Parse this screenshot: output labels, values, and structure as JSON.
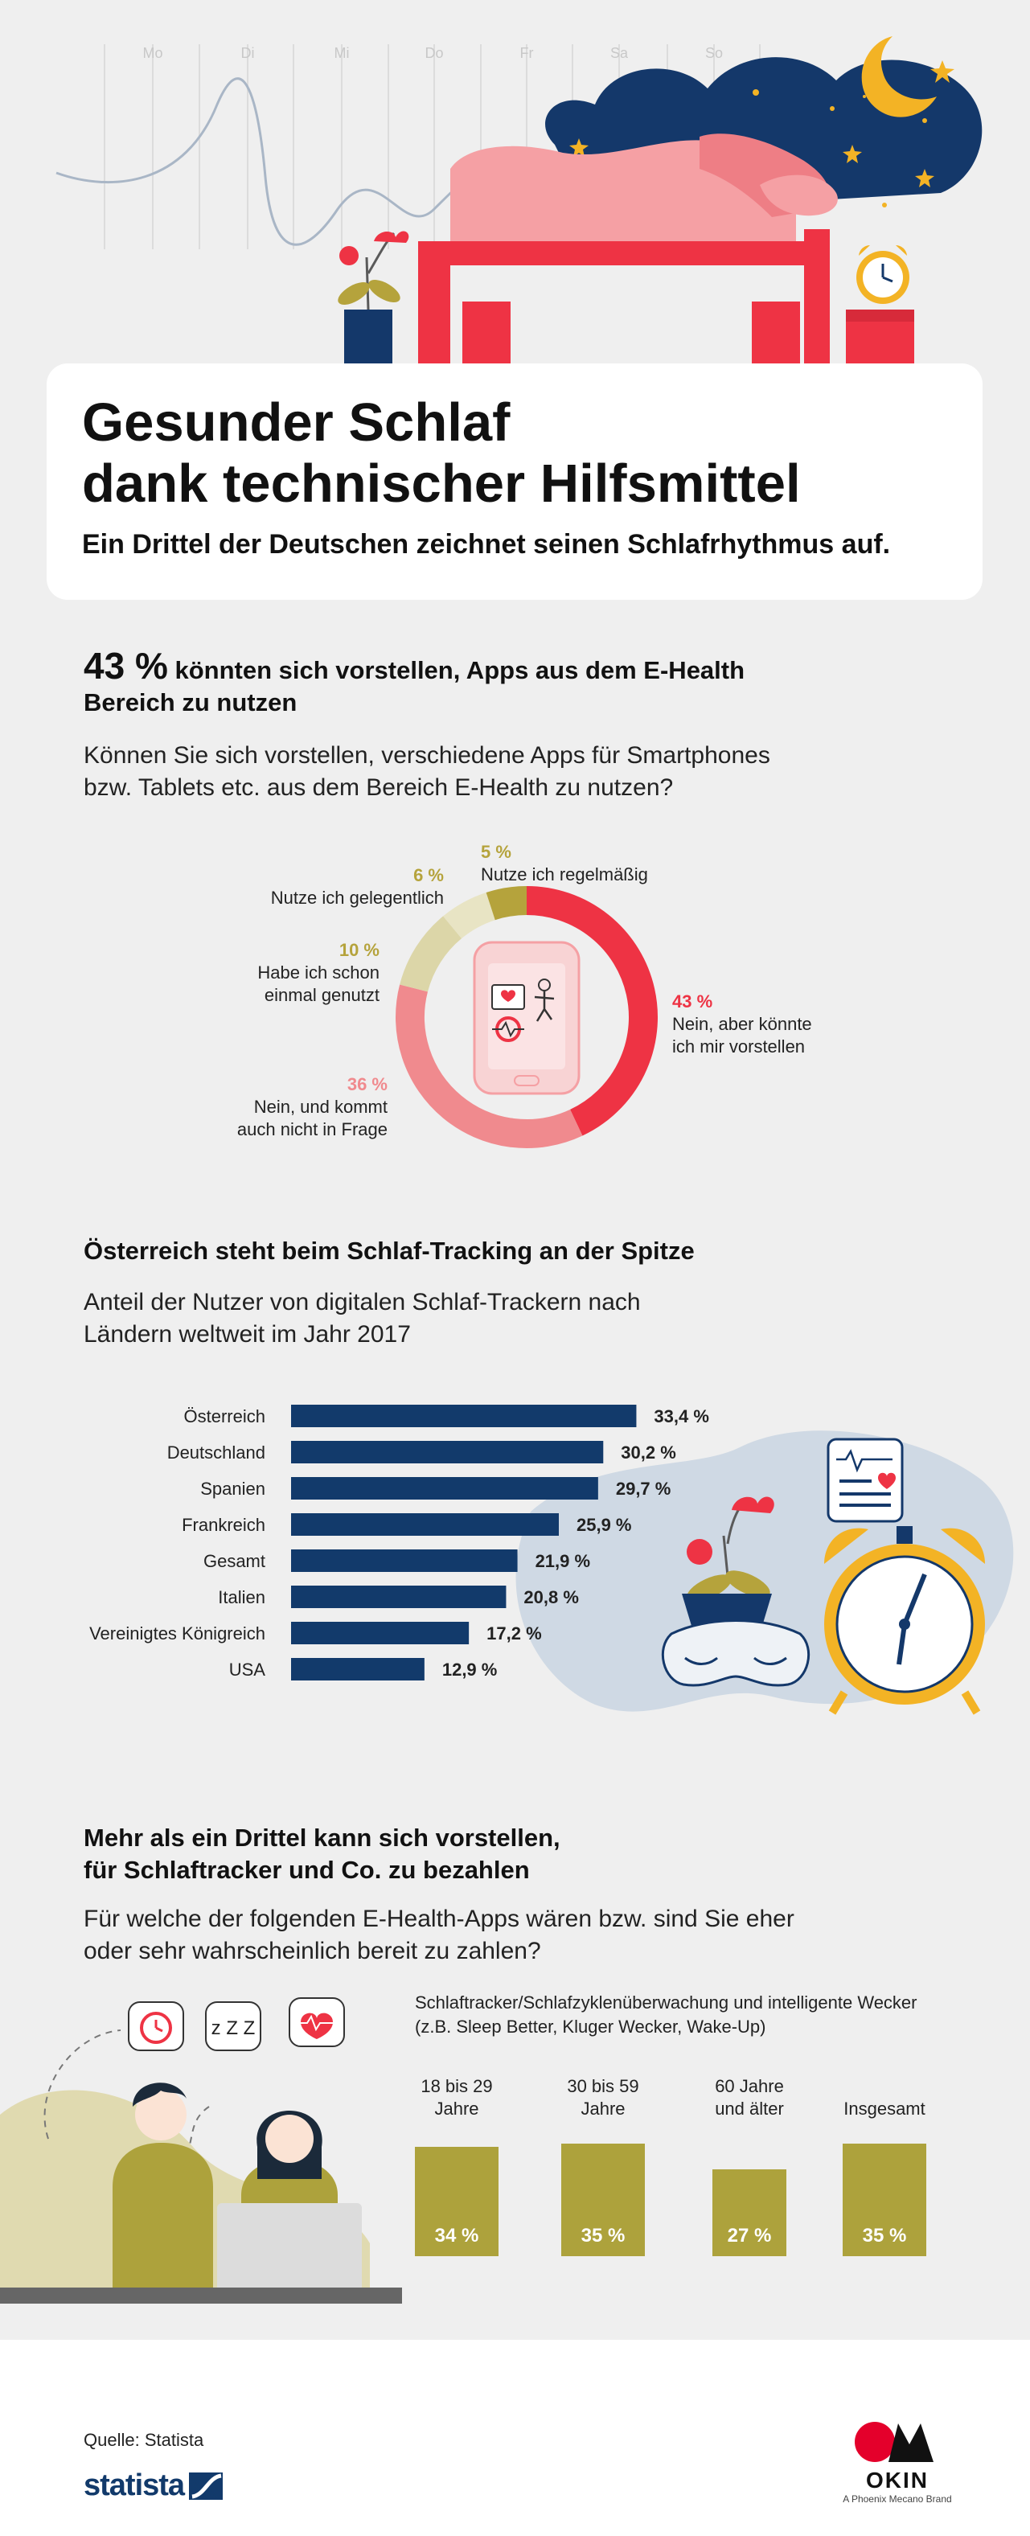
{
  "header": {
    "weekdays": [
      "Mo",
      "Di",
      "Mi",
      "Do",
      "Fr",
      "Sa",
      "So"
    ]
  },
  "title": {
    "line1": "Gesunder Schlaf",
    "line2": "dank technischer Hilfsmittel",
    "subtitle": "Ein Drittel der Deutschen zeichnet seinen Schlafrhythmus auf."
  },
  "section1": {
    "headline_pct": "43 %",
    "headline_rest": "könnten sich vorstellen, Apps aus dem E-Health",
    "headline_line2": "Bereich zu nutzen",
    "question_line1": "Können Sie sich vorstellen, verschiedene Apps für Smartphones",
    "question_line2": "bzw. Tablets etc. aus dem Bereich E-Health zu nutzen?"
  },
  "section2": {
    "title": "Österreich steht beim Schlaf-Tracking an der Spitze",
    "subtitle_line1": "Anteil der Nutzer von digitalen Schlaf-Trackern nach",
    "subtitle_line2": "Ländern weltweit im Jahr 2017"
  },
  "section3": {
    "title_line1": "Mehr als ein Drittel kann sich vorstellen,",
    "title_line2": "für Schlaftracker und Co. zu bezahlen",
    "question_line1": "Für welche der folgenden E-Health-Apps wären bzw. sind Sie eher",
    "question_line2": "oder sehr wahrscheinlich bereit zu zahlen?",
    "chart_title_line1": "Schlaftracker/Schlafzyklenüberwachung und intelligente Wecker",
    "chart_title_line2": "(z.B. Sleep Better, Kluger Wecker, Wake-Up)",
    "zzz": "z Z Z"
  },
  "footer": {
    "source": "Quelle: Statista",
    "statista_logo": "statista",
    "okin_logo": "OKIN",
    "okin_tagline": "A Phoenix Mecano Brand"
  },
  "colors": {
    "red": "#ee3344",
    "pink": "#f08a8e",
    "light_olive": "#dcd6a8",
    "olive": "#b5a33c",
    "navy": "#123a6b",
    "bar_olive": "#ada23c"
  },
  "chart_data": [
    {
      "type": "pie",
      "style": "donut",
      "slices": [
        {
          "label_line1": "Nein, aber könnte",
          "label_line2": "ich mir vorstellen",
          "value": 43,
          "pct_label": "43 %",
          "color": "#ee3344"
        },
        {
          "label_line1": "Nein, und kommt",
          "label_line2": "auch nicht in Frage",
          "value": 36,
          "pct_label": "36 %",
          "color": "#f08a8e"
        },
        {
          "label_line1": "Habe ich schon",
          "label_line2": "einmal genutzt",
          "value": 10,
          "pct_label": "10 %",
          "color": "#dcd6a8"
        },
        {
          "label_line1": "Nutze ich gelegentlich",
          "label_line2": "",
          "value": 6,
          "pct_label": "6 %",
          "color": "#e8e4c4"
        },
        {
          "label_line1": "Nutze ich regelmäßig",
          "label_line2": "",
          "value": 5,
          "pct_label": "5 %",
          "color": "#b5a33c"
        }
      ]
    },
    {
      "type": "bar",
      "orientation": "horizontal",
      "categories": [
        "Österreich",
        "Deutschland",
        "Spanien",
        "Frankreich",
        "Gesamt",
        "Italien",
        "Vereinigtes Königreich",
        "USA"
      ],
      "values": [
        33.4,
        30.2,
        29.7,
        25.9,
        21.9,
        20.8,
        17.2,
        12.9
      ],
      "value_labels": [
        "33,4 %",
        "30,2 %",
        "29,7 %",
        "25,9 %",
        "21,9 %",
        "20,8 %",
        "17,2 %",
        "12,9 %"
      ],
      "xlim": [
        0,
        35
      ],
      "color": "#123a6b"
    },
    {
      "type": "bar",
      "orientation": "vertical",
      "categories": [
        {
          "line1": "18 bis 29",
          "line2": "Jahre"
        },
        {
          "line1": "30 bis 59",
          "line2": "Jahre"
        },
        {
          "line1": "60 Jahre",
          "line2": "und älter"
        },
        {
          "line1": "",
          "line2": "Insgesamt"
        }
      ],
      "values": [
        34,
        35,
        27,
        35
      ],
      "value_labels": [
        "34 %",
        "35 %",
        "27 %",
        "35 %"
      ],
      "ylim": [
        0,
        35
      ],
      "color": "#ada23c"
    }
  ]
}
